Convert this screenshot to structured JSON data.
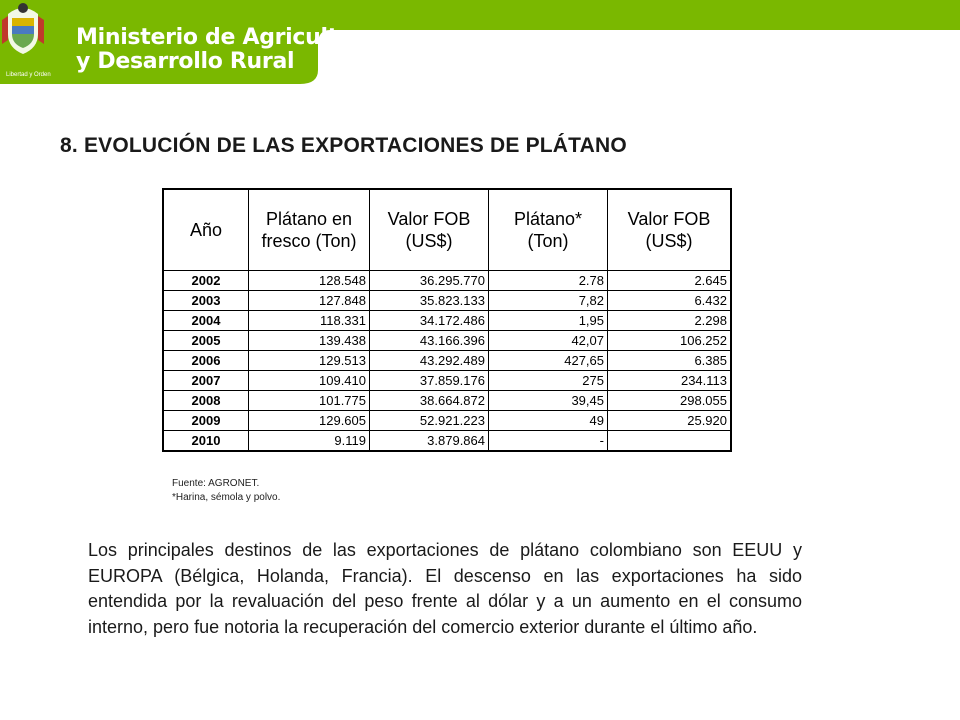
{
  "header": {
    "ministry_line1": "Ministerio de Agricultura",
    "ministry_line2": "y Desarrollo Rural",
    "crest_caption": "Libertad y Orden",
    "brand_color": "#7ab800"
  },
  "title": "8. EVOLUCIÓN DE LAS EXPORTACIONES DE PLÁTANO",
  "table": {
    "headers": [
      "Año",
      "Plátano en fresco (Ton)",
      "Valor FOB (US$)",
      "Plátano* (Ton)",
      "Valor FOB (US$)"
    ],
    "rows": [
      [
        "2002",
        "128.548",
        "36.295.770",
        "2.78",
        "2.645"
      ],
      [
        "2003",
        "127.848",
        "35.823.133",
        "7,82",
        "6.432"
      ],
      [
        "2004",
        "118.331",
        "34.172.486",
        "1,95",
        "2.298"
      ],
      [
        "2005",
        "139.438",
        "43.166.396",
        "42,07",
        "106.252"
      ],
      [
        "2006",
        "129.513",
        "43.292.489",
        "427,65",
        "6.385"
      ],
      [
        "2007",
        "109.410",
        "37.859.176",
        "275",
        "234.113"
      ],
      [
        "2008",
        "101.775",
        "38.664.872",
        "39,45",
        "298.055"
      ],
      [
        "2009",
        "129.605",
        "52.921.223",
        "49",
        "25.920"
      ],
      [
        "2010",
        "9.119",
        "3.879.864",
        "-",
        ""
      ]
    ]
  },
  "source_line1": "Fuente: AGRONET.",
  "source_line2": "*Harina,  sémola y polvo.",
  "paragraph": "Los principales destinos de las exportaciones de plátano colombiano son EEUU y EUROPA (Bélgica, Holanda, Francia). El descenso en las exportaciones ha sido entendida por la revaluación del peso frente al dólar y a un aumento en el consumo interno, pero fue notoria la recuperación del comercio exterior durante el último año."
}
